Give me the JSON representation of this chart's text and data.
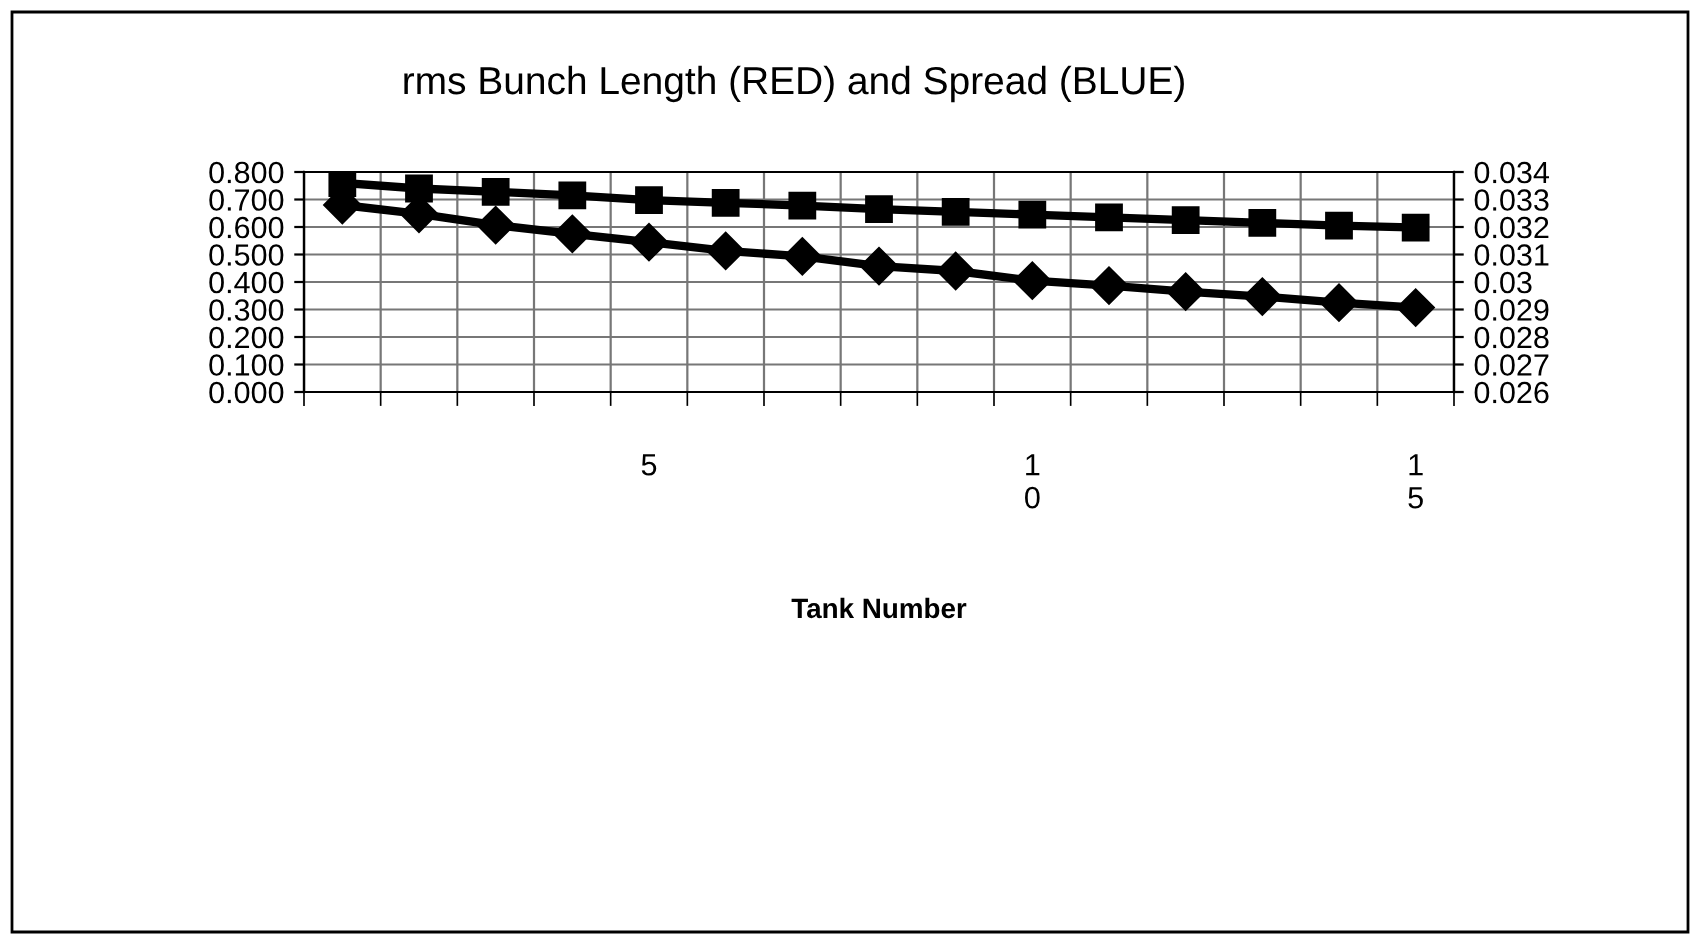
{
  "chart_data": {
    "type": "line",
    "title": "rms Bunch Length (RED) and Spread (BLUE)",
    "xlabel": "Tank Number",
    "categories": [
      null,
      null,
      null,
      null,
      "5",
      null,
      null,
      null,
      null,
      "10",
      null,
      null,
      null,
      null,
      "15"
    ],
    "series": [
      {
        "color": "#000000",
        "marker": "square",
        "values": [
          0.76,
          0.74,
          0.728,
          0.715,
          0.698,
          0.688,
          0.678,
          0.665,
          0.655,
          0.645,
          0.635,
          0.625,
          0.615,
          0.605,
          0.598
        ]
      },
      {
        "color": "#000000",
        "marker": "diamond",
        "axis": "y2",
        "values": [
          0.0328,
          0.03248,
          0.03207,
          0.03175,
          0.03145,
          0.03113,
          0.03093,
          0.03058,
          0.0304,
          0.03005,
          0.02987,
          0.02965,
          0.02947,
          0.02925,
          0.02907
        ]
      }
    ],
    "ylim": [
      0,
      0.8
    ],
    "yticks": [
      {
        "value": 0,
        "label": "0.000"
      },
      {
        "value": 0.1,
        "label": "0.100"
      },
      {
        "value": 0.2,
        "label": "0.200"
      },
      {
        "value": 0.3,
        "label": "0.300"
      },
      {
        "value": 0.4,
        "label": "0.400"
      },
      {
        "value": 0.5,
        "label": "0.500"
      },
      {
        "value": 0.6,
        "label": "0.600"
      },
      {
        "value": 0.7,
        "label": "0.700"
      },
      {
        "value": 0.8,
        "label": "0.800"
      }
    ],
    "y2lim": [
      0.026,
      0.034
    ],
    "y2ticks": [
      0.026,
      0.027,
      0.028,
      0.029,
      0.03,
      0.031,
      0.032,
      0.033,
      0.034
    ],
    "grid": true,
    "line_style": "solid"
  }
}
